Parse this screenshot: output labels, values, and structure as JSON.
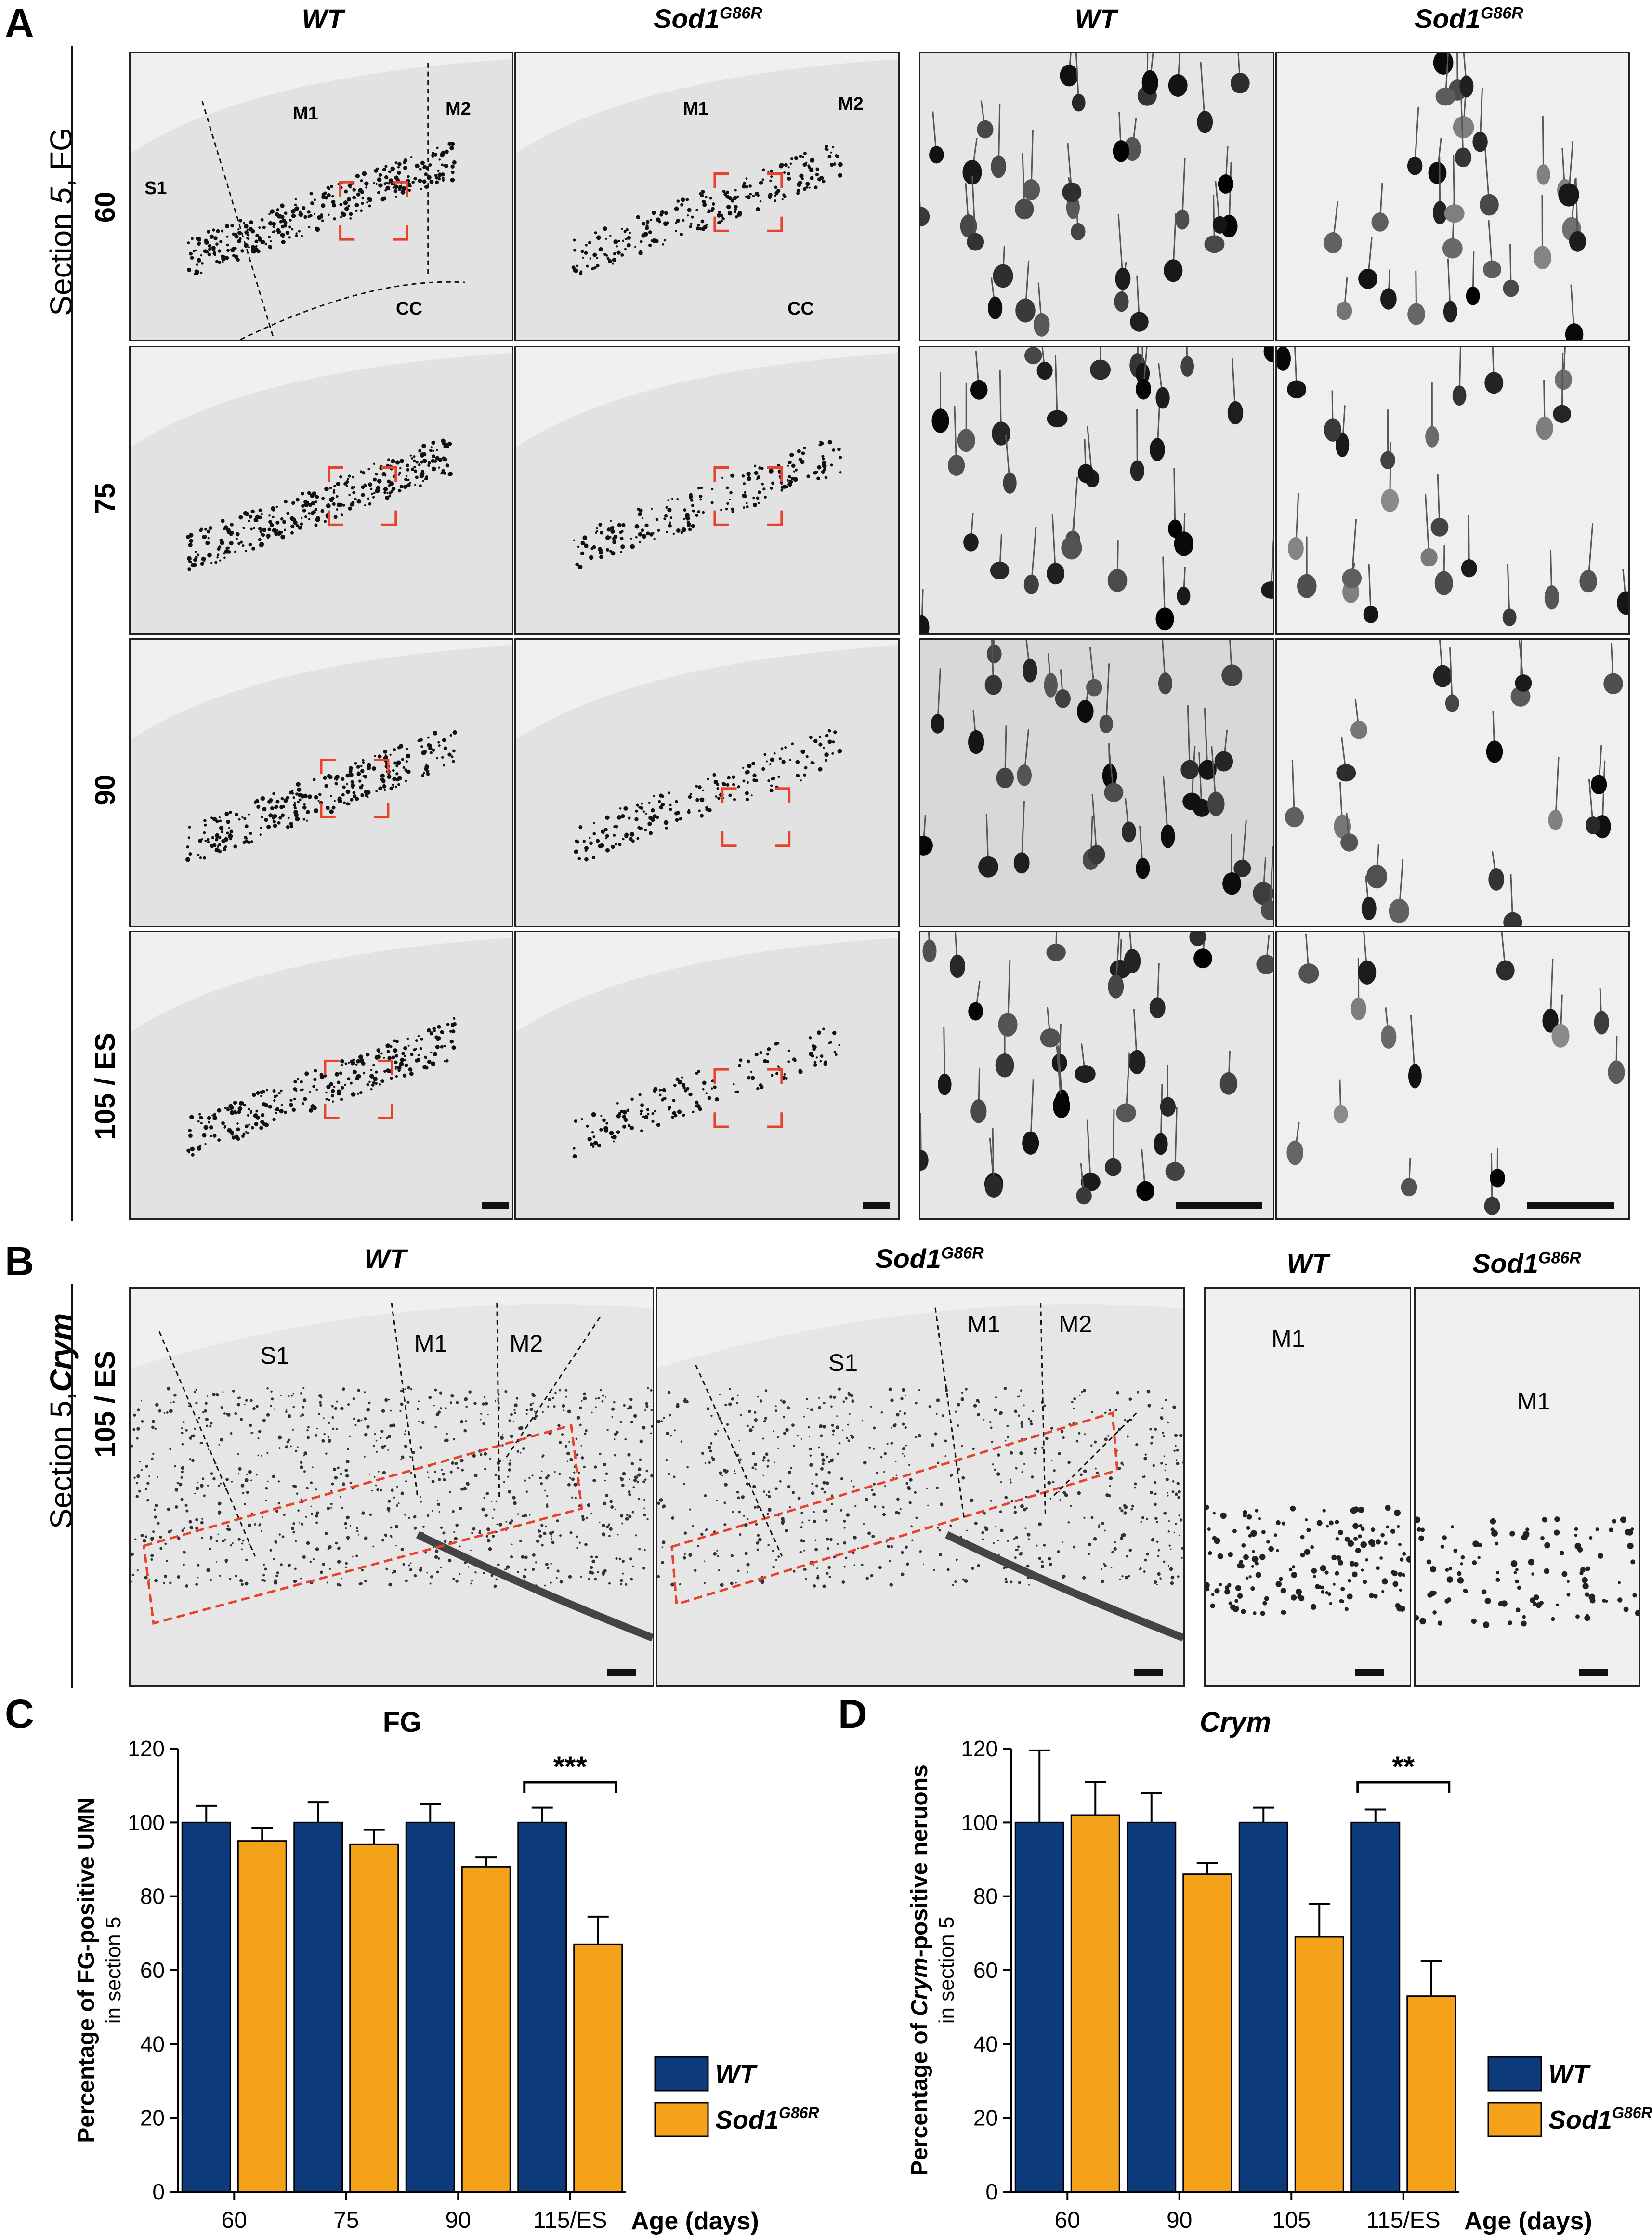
{
  "panelA": {
    "letter": "A",
    "side_label_prefix": "Section ",
    "side_label_num": "5",
    "side_label_suffix": ", FG",
    "col_headers": [
      {
        "base": "WT",
        "sup": ""
      },
      {
        "base": "Sod1",
        "sup": "G86R"
      },
      {
        "base": "WT",
        "sup": ""
      },
      {
        "base": "Sod1",
        "sup": "G86R"
      }
    ],
    "rows": [
      "60",
      "75",
      "90",
      "105 / ES"
    ],
    "regions": {
      "s1": "S1",
      "m1": "M1",
      "m2": "M2",
      "cc": "CC"
    }
  },
  "panelB": {
    "letter": "B",
    "side_label_prefix": "Section ",
    "side_label_num": "5,",
    "side_label_suffix": "Crym",
    "row": "105 / ES",
    "col_headers": [
      {
        "base": "WT",
        "sup": ""
      },
      {
        "base": "Sod1",
        "sup": "G86R"
      },
      {
        "base": "WT",
        "sup": ""
      },
      {
        "base": "Sod1",
        "sup": "G86R"
      }
    ],
    "regions": {
      "s1": "S1",
      "m1": "M1",
      "m2": "M2"
    }
  },
  "chart_data": [
    {
      "panel": "C",
      "type": "bar",
      "title": "FG",
      "ylabel_line1_pre": "Percentage of ",
      "ylabel_line1_bold": "FG-positive UMN",
      "ylabel_line2": "in section 5",
      "xlabel": "Age (days)",
      "categories": [
        "60",
        "75",
        "90",
        "115/ES"
      ],
      "ylim": [
        0,
        120
      ],
      "yticks": [
        "0",
        "20",
        "40",
        "60",
        "80",
        "100",
        "120"
      ],
      "series": [
        {
          "name": "WT",
          "color": "#0d3a7a",
          "values": [
            100,
            100,
            100,
            100
          ],
          "errors": [
            4.5,
            5.5,
            5,
            4
          ]
        },
        {
          "name": "Sod1",
          "sup": "G86R",
          "color": "#f4a21a",
          "values": [
            95,
            94,
            88,
            67
          ],
          "errors": [
            3.5,
            4,
            2.5,
            7.5
          ]
        }
      ],
      "significance": {
        "category_index": 3,
        "label": "***"
      }
    },
    {
      "panel": "D",
      "type": "bar",
      "title": "Crym",
      "ylabel_line1_pre": "Percentage of ",
      "ylabel_line1_italic": "Crym",
      "ylabel_line1_post": "-positive neruons",
      "ylabel_line2": "in section 5",
      "xlabel": "Age (days)",
      "categories": [
        "60",
        "90",
        "105",
        "115/ES"
      ],
      "ylim": [
        0,
        120
      ],
      "yticks": [
        "0",
        "20",
        "40",
        "60",
        "80",
        "100",
        "120"
      ],
      "series": [
        {
          "name": "WT",
          "color": "#0d3a7a",
          "values": [
            100,
            100,
            100,
            100
          ],
          "errors": [
            19.5,
            8,
            4,
            3.5
          ]
        },
        {
          "name": "Sod1",
          "sup": "G86R",
          "color": "#f4a21a",
          "values": [
            102,
            86,
            69,
            53
          ],
          "errors": [
            9,
            3,
            9,
            9.5
          ]
        }
      ],
      "significance": {
        "category_index": 3,
        "label": "**"
      }
    }
  ]
}
